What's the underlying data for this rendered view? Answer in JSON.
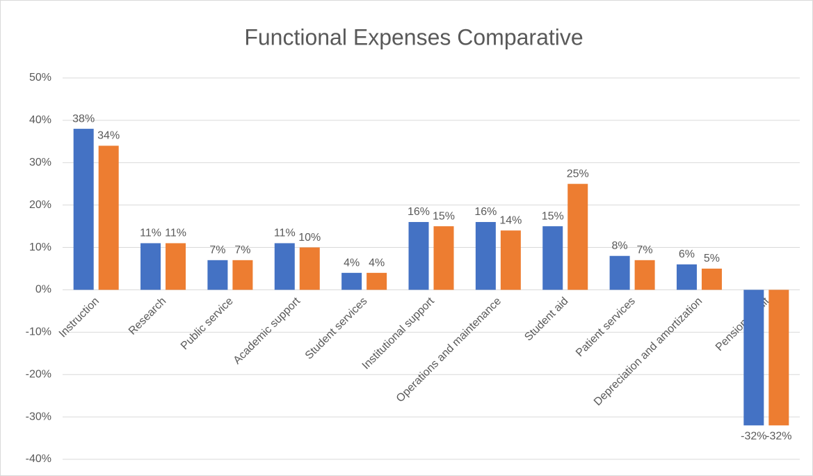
{
  "chart_data": {
    "type": "bar",
    "title": "Functional Expenses Comparative",
    "categories": [
      "Instruction",
      "Research",
      "Public service",
      "Academic support",
      "Student services",
      "Institutional support",
      "Operations and maintenance",
      "Student aid",
      "Patient services",
      "Depreciation and amortization",
      "Pension credit"
    ],
    "series": [
      {
        "color": "#4472c4",
        "values": [
          38,
          11,
          7,
          11,
          4,
          16,
          16,
          15,
          8,
          6,
          -32
        ],
        "value_labels": [
          "38%",
          "11%",
          "7%",
          "11%",
          "4%",
          "16%",
          "16%",
          "15%",
          "8%",
          "6%",
          "-32%"
        ]
      },
      {
        "color": "#ed7d31",
        "values": [
          34,
          11,
          7,
          10,
          4,
          15,
          14,
          25,
          7,
          5,
          -32
        ],
        "value_labels": [
          "34%",
          "11%",
          "7%",
          "10%",
          "4%",
          "15%",
          "14%",
          "25%",
          "7%",
          "5%",
          "-32%"
        ]
      }
    ],
    "ylim": [
      -40,
      50
    ],
    "yticks": [
      {
        "value": -40,
        "label": "-40%"
      },
      {
        "value": -30,
        "label": "-30%"
      },
      {
        "value": -20,
        "label": "-20%"
      },
      {
        "value": -10,
        "label": "-10%"
      },
      {
        "value": 0,
        "label": "0%"
      },
      {
        "value": 10,
        "label": "10%"
      },
      {
        "value": 20,
        "label": "20%"
      },
      {
        "value": 30,
        "label": "30%"
      },
      {
        "value": 40,
        "label": "40%"
      },
      {
        "value": 50,
        "label": "50%"
      }
    ],
    "grid": true
  }
}
